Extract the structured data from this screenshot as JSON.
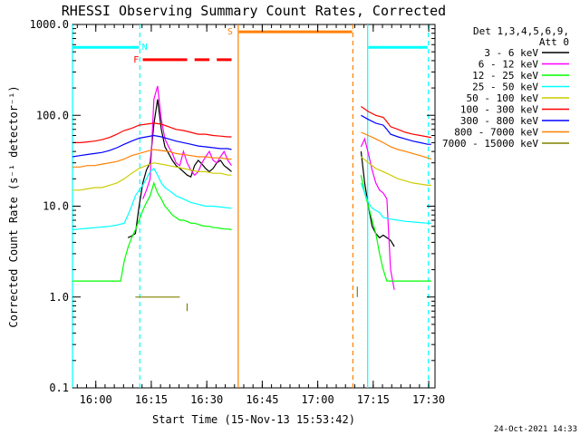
{
  "chart_data": {
    "type": "line",
    "title": "RHESSI Observing Summary Count Rates, Corrected",
    "xlabel": "Start Time (15-Nov-13 15:53:42)",
    "ylabel": "Corrected Count Rate (s⁻¹ detector⁻¹)",
    "x_unit": "minutes since 15:53:42",
    "xlim": [
      0,
      98
    ],
    "ylim": [
      0.1,
      1000
    ],
    "y_scale": "log",
    "x_ticks": [
      {
        "label": "16:00",
        "at": 6.3
      },
      {
        "label": "16:15",
        "at": 21.3
      },
      {
        "label": "16:30",
        "at": 36.3
      },
      {
        "label": "16:45",
        "at": 51.3
      },
      {
        "label": "17:00",
        "at": 66.3
      },
      {
        "label": "17:15",
        "at": 81.3
      },
      {
        "label": "17:30",
        "at": 96.3
      }
    ],
    "y_ticks": [
      {
        "label": "0.1",
        "at": 0.1
      },
      {
        "label": "1.0",
        "at": 1
      },
      {
        "label": "10.0",
        "at": 10
      },
      {
        "label": "100.0",
        "at": 100
      },
      {
        "label": "1000.0",
        "at": 1000
      }
    ],
    "legend_header": [
      "Det 1,3,4,5,6,9,",
      "Att 0"
    ],
    "legend_position": "right",
    "timestamp": "24-Oct-2021 14:33",
    "series": [
      {
        "name": "3 - 6 keV",
        "color": "#000000",
        "segments": [
          {
            "x": [
              15,
              16,
              17,
              18,
              19,
              20,
              21,
              22,
              23,
              24,
              25,
              26,
              27,
              28,
              29,
              30,
              31,
              32,
              33,
              34,
              35,
              36,
              37,
              38,
              39,
              40,
              41,
              42,
              43
            ],
            "y": [
              4.5,
              4.7,
              5.0,
              10,
              18,
              25,
              30,
              80,
              150,
              70,
              45,
              38,
              32,
              28,
              26,
              24,
              22,
              21,
              28,
              32,
              29,
              26,
              24,
              26,
              30,
              32,
              28,
              26,
              24
            ]
          },
          {
            "x": [
              78,
              79,
              80,
              81,
              82,
              83,
              84,
              85,
              86,
              87
            ],
            "y": [
              40,
              18,
              10,
              6,
              5,
              4.5,
              4.8,
              4.5,
              4.2,
              3.6
            ]
          }
        ]
      },
      {
        "name": "6 - 12 keV",
        "color": "#ff00ff",
        "segments": [
          {
            "x": [
              19,
              20,
              21,
              22,
              23,
              24,
              25,
              26,
              27,
              28,
              29,
              30,
              31,
              32,
              33,
              34,
              35,
              36,
              37,
              38,
              39,
              40,
              41,
              42,
              43
            ],
            "y": [
              12,
              15,
              20,
              150,
              210,
              90,
              55,
              45,
              38,
              30,
              28,
              40,
              30,
              25,
              22,
              24,
              30,
              35,
              40,
              32,
              30,
              35,
              40,
              32,
              28
            ]
          },
          {
            "x": [
              78,
              79,
              80,
              81,
              82,
              83,
              84,
              85,
              86,
              87
            ],
            "y": [
              45,
              55,
              38,
              25,
              18,
              15,
              14,
              12,
              2,
              1.2
            ]
          }
        ]
      },
      {
        "name": "12 - 25 keV",
        "color": "#00ff00",
        "segments": [
          {
            "x": [
              0,
              1,
              2,
              3,
              4,
              5,
              6,
              7,
              8,
              9,
              10,
              11,
              12,
              13,
              14,
              15,
              16,
              17,
              18,
              19,
              20,
              21,
              22,
              23,
              24,
              25,
              26,
              27,
              28,
              29,
              30,
              31,
              32,
              33,
              34,
              35,
              36,
              37,
              38,
              39,
              40,
              41,
              42,
              43
            ],
            "y": [
              1.5,
              1.5,
              1.5,
              1.5,
              1.5,
              1.5,
              1.5,
              1.5,
              1.5,
              1.5,
              1.5,
              1.5,
              1.5,
              1.5,
              2.5,
              3.5,
              4.5,
              5.5,
              7,
              9,
              11,
              13,
              18,
              14,
              12,
              10,
              9,
              8,
              7.5,
              7,
              7,
              6.8,
              6.5,
              6.5,
              6.3,
              6.1,
              6,
              6,
              5.8,
              5.8,
              5.7,
              5.6,
              5.6,
              5.5
            ]
          },
          {
            "x": [
              78,
              79,
              80,
              81,
              82,
              83,
              84,
              85,
              86,
              87,
              88,
              89,
              90,
              91,
              92,
              93,
              94,
              95,
              96,
              97
            ],
            "y": [
              22,
              14,
              10,
              7,
              5,
              3,
              2,
              1.5,
              1.5,
              1.5,
              1.5,
              1.5,
              1.5,
              1.5,
              1.5,
              1.5,
              1.5,
              1.5,
              1.5,
              1.5
            ]
          }
        ]
      },
      {
        "name": "25 - 50 keV",
        "color": "#00ffff",
        "segments": [
          {
            "x": [
              0,
              2,
              4,
              6,
              8,
              10,
              12,
              14,
              15,
              16,
              17,
              18,
              19,
              20,
              21,
              22,
              23,
              24,
              25,
              26,
              27,
              28,
              29,
              30,
              32,
              34,
              36,
              38,
              40,
              42,
              43
            ],
            "y": [
              5.5,
              5.6,
              5.7,
              5.8,
              5.9,
              6.0,
              6.2,
              6.5,
              8,
              10,
              13,
              15,
              17,
              20,
              24,
              26,
              22,
              18,
              16,
              15,
              14,
              13,
              12.5,
              12,
              11,
              10.5,
              10,
              10,
              9.8,
              9.6,
              9.5
            ]
          },
          {
            "x": [
              78,
              79,
              80,
              81,
              82,
              83,
              84,
              86,
              88,
              90,
              92,
              94,
              96,
              97
            ],
            "y": [
              18,
              14,
              11,
              9.5,
              9,
              8.5,
              7.5,
              7.2,
              7,
              6.8,
              6.7,
              6.6,
              6.5,
              6.5
            ]
          }
        ]
      },
      {
        "name": "50 - 100 keV",
        "color": "#cccc00",
        "segments": [
          {
            "x": [
              0,
              2,
              4,
              6,
              8,
              10,
              12,
              14,
              16,
              18,
              20,
              22,
              24,
              26,
              28,
              30,
              32,
              34,
              36,
              38,
              40,
              42,
              43
            ],
            "y": [
              15,
              15,
              15.5,
              16,
              16,
              17,
              18,
              20,
              23,
              26,
              28,
              30,
              29,
              28,
              27,
              26,
              25,
              24,
              24,
              23,
              23,
              22,
              22
            ]
          },
          {
            "x": [
              78,
              80,
              82,
              84,
              86,
              88,
              90,
              92,
              94,
              96,
              97
            ],
            "y": [
              35,
              30,
              26,
              24,
              22,
              20,
              19,
              18,
              17.5,
              17,
              17
            ]
          }
        ]
      },
      {
        "name": "100 - 300 keV",
        "color": "#ff0000",
        "segments": [
          {
            "x": [
              0,
              2,
              4,
              6,
              8,
              10,
              12,
              14,
              16,
              18,
              20,
              22,
              24,
              26,
              28,
              30,
              32,
              34,
              36,
              38,
              40,
              42,
              43
            ],
            "y": [
              50,
              50,
              51,
              52,
              54,
              57,
              62,
              68,
              72,
              78,
              80,
              82,
              80,
              75,
              70,
              68,
              65,
              62,
              62,
              60,
              59,
              58,
              58
            ]
          },
          {
            "x": [
              78,
              80,
              82,
              84,
              85,
              86,
              88,
              90,
              92,
              94,
              96,
              97
            ],
            "y": [
              125,
              110,
              100,
              95,
              85,
              75,
              70,
              65,
              62,
              60,
              58,
              57
            ]
          }
        ]
      },
      {
        "name": "300 - 800 keV",
        "color": "#0000ff",
        "segments": [
          {
            "x": [
              0,
              2,
              4,
              6,
              8,
              10,
              12,
              14,
              16,
              18,
              20,
              22,
              24,
              26,
              28,
              30,
              32,
              34,
              36,
              38,
              40,
              42,
              43
            ],
            "y": [
              35,
              36,
              37,
              38,
              39,
              41,
              44,
              48,
              52,
              56,
              58,
              60,
              58,
              55,
              52,
              50,
              48,
              46,
              45,
              44,
              43,
              43,
              42
            ]
          },
          {
            "x": [
              78,
              80,
              82,
              84,
              85,
              86,
              88,
              90,
              92,
              94,
              96,
              97
            ],
            "y": [
              100,
              90,
              82,
              78,
              70,
              62,
              58,
              55,
              52,
              50,
              48,
              48
            ]
          }
        ]
      },
      {
        "name": "800 - 7000 keV",
        "color": "#ff8000",
        "segments": [
          {
            "x": [
              0,
              2,
              4,
              6,
              8,
              10,
              12,
              14,
              16,
              18,
              20,
              22,
              24,
              26,
              28,
              30,
              32,
              34,
              36,
              38,
              40,
              42,
              43
            ],
            "y": [
              27,
              27,
              28,
              28,
              29,
              30,
              31,
              33,
              36,
              38,
              40,
              42,
              41,
              40,
              38,
              37,
              36,
              35,
              35,
              34,
              34,
              33,
              33
            ]
          },
          {
            "x": [
              78,
              80,
              82,
              84,
              86,
              88,
              90,
              92,
              94,
              96,
              97
            ],
            "y": [
              65,
              60,
              55,
              50,
              45,
              42,
              40,
              38,
              36,
              34,
              33
            ]
          }
        ]
      },
      {
        "name": "7000 - 15000 keV",
        "color": "#808000",
        "segments": [
          {
            "x": [
              17,
              19,
              21,
              23,
              25,
              27,
              29
            ],
            "y": [
              1.0,
              1.0,
              1.0,
              1.0,
              1.0,
              1.0,
              1.0
            ]
          },
          {
            "x": [
              31,
              31
            ],
            "y": [
              0.7,
              0.85
            ]
          },
          {
            "x": [
              77,
              77
            ],
            "y": [
              1.0,
              1.3
            ]
          }
        ]
      }
    ],
    "vlines": [
      {
        "x": 0,
        "color": "#00ffff",
        "dash": false
      },
      {
        "x": 18.2,
        "color": "#00ffff",
        "dash": true
      },
      {
        "x": 44.8,
        "color": "#ff8000",
        "dash": false
      },
      {
        "x": 75.8,
        "color": "#ff8000",
        "dash": true
      },
      {
        "x": 79.8,
        "color": "#00ffff",
        "dash": false
      },
      {
        "x": 96.2,
        "color": "#00ffff",
        "dash": true
      }
    ],
    "flag_bars": [
      {
        "label": "N",
        "color": "#00ffff",
        "y": 560,
        "segments": [
          [
            0,
            18
          ]
        ],
        "label_at": 19.5
      },
      {
        "label": "",
        "color": "#00ffff",
        "y": 560,
        "segments": [
          [
            80,
            96
          ]
        ]
      },
      {
        "label": "F",
        "color": "#ff0000",
        "y": 410,
        "segments": [
          [
            19,
            31
          ],
          [
            33,
            37
          ],
          [
            39,
            43
          ]
        ],
        "label_at": 17.2
      },
      {
        "label": "S",
        "color": "#ff8000",
        "y": 830,
        "segments": [
          [
            45,
            75.6
          ]
        ],
        "label_at": 42.6
      }
    ]
  }
}
